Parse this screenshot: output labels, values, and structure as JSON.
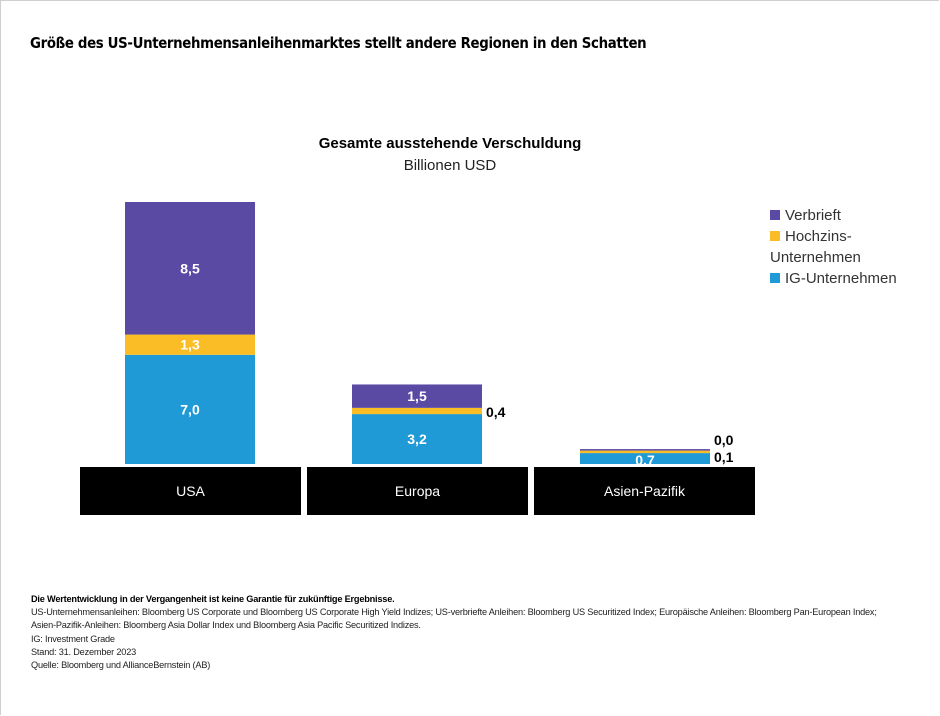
{
  "page": {
    "title": "Größe des US-Unternehmensanleihenmarktes stellt andere Regionen in den Schatten"
  },
  "chart_data": {
    "type": "bar",
    "stacked": true,
    "title": "Gesamte ausstehende Verschuldung",
    "subtitle": "Billionen USD",
    "xlabel": "",
    "ylabel": "",
    "categories": [
      "USA",
      "Europa",
      "Asien-Pazifik"
    ],
    "series": [
      {
        "name": "IG-Unternehmen",
        "color": "#1f9ad6",
        "values": [
          7.0,
          3.2,
          0.7
        ],
        "labels": [
          "7,0",
          "3,2",
          "0,7"
        ]
      },
      {
        "name": "Hochzins-Unternehmen",
        "color": "#fbbd26",
        "values": [
          1.3,
          0.4,
          0.1
        ],
        "labels": [
          "1,3",
          "0,4",
          "0,1"
        ]
      },
      {
        "name": "Verbrieft",
        "color": "#5a4aa4",
        "values": [
          8.5,
          1.5,
          0.0
        ],
        "labels": [
          "8,5",
          "1,5",
          "0,0"
        ]
      }
    ],
    "ylim": [
      0,
      16.8
    ],
    "grid": false,
    "axis_visible": false,
    "legend": {
      "position": "right",
      "items": [
        {
          "label_line1": "Verbrieft",
          "label_line2": "",
          "color": "#5a4aa4"
        },
        {
          "label_line1": "Hochzins-",
          "label_line2": "Unternehmen",
          "color": "#fbbd26"
        },
        {
          "label_line1": "IG-Unternehmen",
          "label_line2": "",
          "color": "#1f9ad6"
        }
      ]
    },
    "category_box_color": "#000000",
    "category_text_color": "#ffffff"
  },
  "notes": {
    "disclaimer": "Die Wertentwicklung in der Vergangenheit ist keine Garantie für zukünftige Ergebnisse.",
    "line1": "US-Unternehmensanleihen: Bloomberg US Corporate und Bloomberg US Corporate High Yield Indizes; US-verbriefte Anleihen: Bloomberg US Securitized Index; Europäische Anleihen: Bloomberg Pan-European Index;",
    "line2": "Asien-Pazifik-Anleihen: Bloomberg Asia Dollar Index und Bloomberg Asia Pacific Securitized Indizes.",
    "line3": "IG: Investment Grade",
    "line4": "Stand: 31. Dezember 2023",
    "line5": "Quelle: Bloomberg und AllianceBernstein (AB)"
  }
}
